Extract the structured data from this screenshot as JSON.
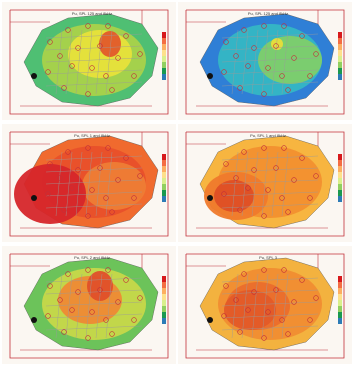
{
  "figure": {
    "panels": [
      {
        "id": "p1",
        "title": "Pu, SPL 125 and 8kHz",
        "scheme": "green-yellow-red",
        "colors": {
          "outer": "#4fbf73",
          "mid": "#a9d24a",
          "inner": "#e8e23a",
          "hot": "#e25a2a"
        }
      },
      {
        "id": "p2",
        "title": "Pu, SPL 125 and 8kHz",
        "scheme": "blue-green-yellow",
        "colors": {
          "outer": "#2f7fd6",
          "mid": "#35b7c4",
          "inner": "#7fcf6a",
          "hot": "#e8dd3a"
        }
      },
      {
        "id": "p3",
        "title": "Pu, SPL 1 and 8kHz",
        "scheme": "red-orange",
        "colors": {
          "outer": "#f06a2e",
          "mid": "#e8502a",
          "inner": "#ee7d35",
          "hot": "#d6262a"
        }
      },
      {
        "id": "p4",
        "title": "Pu, SPL 1 and 8kHz",
        "scheme": "orange",
        "colors": {
          "outer": "#f7b540",
          "mid": "#f2902f",
          "inner": "#ef7a2c",
          "hot": "#de4f25"
        }
      },
      {
        "id": "p5",
        "title": "Pu, SPL 2 and 8kHz",
        "scheme": "green-orange-red",
        "colors": {
          "outer": "#6cc35a",
          "mid": "#c7d84a",
          "inner": "#ee8a34",
          "hot": "#e0502a"
        }
      },
      {
        "id": "p6",
        "title": "Pu, SPL 3",
        "scheme": "orange-red",
        "colors": {
          "outer": "#f3b23f",
          "mid": "#f08d32",
          "inner": "#ea6e2c",
          "hot": "#e35a28"
        }
      }
    ],
    "legend_colors": [
      "#d7191c",
      "#f46d43",
      "#fdae61",
      "#fee08b",
      "#d9ef8b",
      "#91cf60",
      "#1a9850",
      "#2c7bb6"
    ]
  }
}
